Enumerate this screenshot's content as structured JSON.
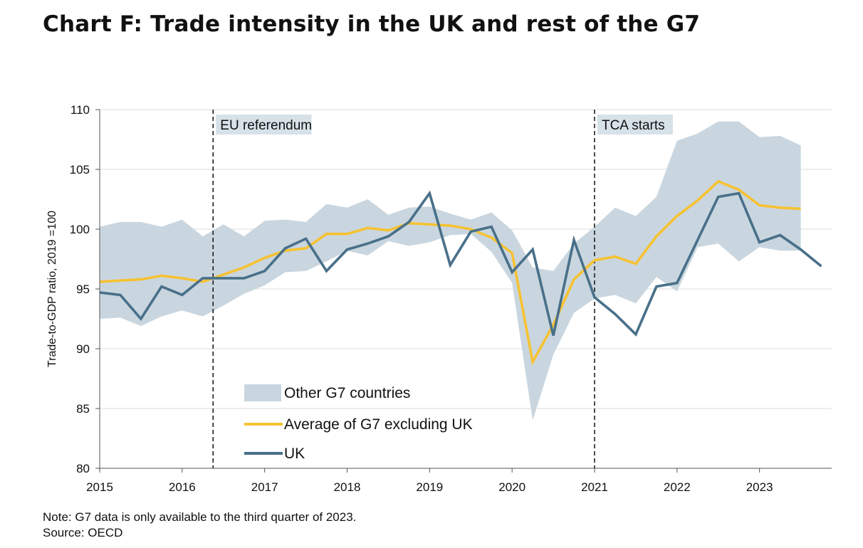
{
  "title": "Chart F: Trade intensity in the UK and rest of the G7",
  "note": "Note: G7 data is only available to the third quarter of 2023.",
  "source": "Source: OECD",
  "colors": {
    "band": "#c9d6df",
    "avg": "#f6c232",
    "uk": "#49708a",
    "grid": "#dcdcdc"
  },
  "chart_data": {
    "type": "line",
    "ylabel": "Trade-to-GDP ratio, 2019 =100",
    "xlabel": "",
    "ylim": [
      80,
      110
    ],
    "xlim": [
      2015,
      2023.875
    ],
    "yticks": [
      80,
      85,
      90,
      95,
      100,
      105,
      110
    ],
    "ytick_labels": [
      "80",
      "85",
      "90",
      "95",
      "100",
      "105",
      "110"
    ],
    "xticks": [
      2015,
      2016,
      2017,
      2018,
      2019,
      2020,
      2021,
      2022,
      2023
    ],
    "xtick_labels": [
      "2015",
      "2016",
      "2017",
      "2018",
      "2019",
      "2020",
      "2021",
      "2022",
      "2023"
    ],
    "grid": true,
    "annotations": [
      {
        "label": "EU referendum",
        "x": 2016.375
      },
      {
        "label": "TCA starts",
        "x": 2021.0
      }
    ],
    "legend": [
      {
        "name": "Other G7 countries",
        "kind": "band"
      },
      {
        "name": "Average of G7 excluding UK",
        "kind": "avg"
      },
      {
        "name": "UK",
        "kind": "uk"
      }
    ],
    "band": {
      "name": "Other G7 countries",
      "x": [
        2015,
        2015.25,
        2015.5,
        2015.75,
        2016,
        2016.25,
        2016.5,
        2016.75,
        2017,
        2017.25,
        2017.5,
        2017.75,
        2018,
        2018.25,
        2018.5,
        2018.75,
        2019,
        2019.25,
        2019.5,
        2019.75,
        2020,
        2020.25,
        2020.5,
        2020.75,
        2021,
        2021.25,
        2021.5,
        2021.75,
        2022,
        2022.25,
        2022.5,
        2022.75,
        2023,
        2023.25,
        2023.5
      ],
      "upper": [
        100.2,
        100.6,
        100.6,
        100.2,
        100.8,
        99.4,
        100.4,
        99.4,
        100.7,
        100.8,
        100.6,
        102.1,
        101.8,
        102.5,
        101.2,
        101.8,
        101.9,
        101.3,
        100.8,
        101.4,
        99.9,
        96.8,
        96.5,
        98.8,
        100.2,
        101.8,
        101.1,
        102.7,
        107.4,
        108.0,
        109.0,
        109.0,
        107.7,
        107.8,
        107.0
      ],
      "lower": [
        92.5,
        92.6,
        91.9,
        92.7,
        93.2,
        92.7,
        93.6,
        94.6,
        95.3,
        96.4,
        96.5,
        97.3,
        98.2,
        97.8,
        99.0,
        98.6,
        98.9,
        99.5,
        99.6,
        98.1,
        95.5,
        84.0,
        89.5,
        93.0,
        94.2,
        94.5,
        93.8,
        96.0,
        94.8,
        98.5,
        98.8,
        97.3,
        98.5,
        98.2,
        98.2
      ]
    },
    "series": [
      {
        "name": "Average of G7 excluding UK",
        "x": [
          2015,
          2015.25,
          2015.5,
          2015.75,
          2016,
          2016.25,
          2016.5,
          2016.75,
          2017,
          2017.25,
          2017.5,
          2017.75,
          2018,
          2018.25,
          2018.5,
          2018.75,
          2019,
          2019.25,
          2019.5,
          2019.75,
          2020,
          2020.25,
          2020.5,
          2020.75,
          2021,
          2021.25,
          2021.5,
          2021.75,
          2022,
          2022.25,
          2022.5,
          2022.75,
          2023,
          2023.25,
          2023.5
        ],
        "values": [
          95.6,
          95.7,
          95.8,
          96.1,
          95.9,
          95.6,
          96.2,
          96.8,
          97.6,
          98.2,
          98.4,
          99.6,
          99.6,
          100.1,
          99.9,
          100.5,
          100.4,
          100.3,
          100.0,
          99.3,
          98.0,
          88.9,
          92.0,
          95.8,
          97.4,
          97.7,
          97.1,
          99.4,
          101.1,
          102.4,
          104.0,
          103.3,
          102.0,
          101.8,
          101.7
        ]
      },
      {
        "name": "UK",
        "x": [
          2015,
          2015.25,
          2015.5,
          2015.75,
          2016,
          2016.25,
          2016.5,
          2016.75,
          2017,
          2017.25,
          2017.5,
          2017.75,
          2018,
          2018.25,
          2018.5,
          2018.75,
          2019,
          2019.25,
          2019.5,
          2019.75,
          2020,
          2020.25,
          2020.5,
          2020.75,
          2021,
          2021.25,
          2021.5,
          2021.75,
          2022,
          2022.25,
          2022.5,
          2022.75,
          2023,
          2023.25,
          2023.5,
          2023.75
        ],
        "values": [
          94.7,
          94.5,
          92.5,
          95.2,
          94.5,
          95.9,
          95.9,
          95.9,
          96.5,
          98.4,
          99.2,
          96.5,
          98.3,
          98.8,
          99.4,
          100.6,
          103.0,
          97.0,
          99.8,
          100.2,
          96.4,
          98.3,
          91.1,
          99.1,
          94.3,
          92.9,
          91.2,
          95.2,
          95.5,
          99.1,
          102.7,
          103.0,
          98.9,
          99.5,
          98.3,
          96.9
        ]
      }
    ]
  }
}
